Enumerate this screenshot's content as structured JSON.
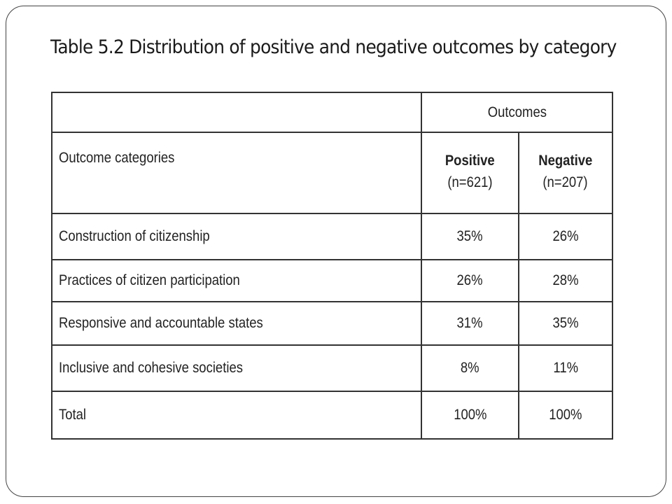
{
  "title": "Table 5.2 Distribution of positive and negative outcomes by category",
  "chart_data": {
    "type": "table",
    "title": "Table 5.2 Distribution of positive and negative outcomes by category",
    "group_header": "Outcomes",
    "row_header": "Outcome categories",
    "columns": [
      {
        "name": "Positive",
        "n_label": "(n=621)"
      },
      {
        "name": "Negative",
        "n_label": "(n=207)"
      }
    ],
    "rows": [
      {
        "category": "Construction of citizenship",
        "positive": "35%",
        "negative": "26%"
      },
      {
        "category": "Practices of citizen participation",
        "positive": "26%",
        "negative": "28%"
      },
      {
        "category": "Responsive and accountable states",
        "positive": "31%",
        "negative": "35%"
      },
      {
        "category": "Inclusive and cohesive societies",
        "positive": "8%",
        "negative": "11%"
      },
      {
        "category": "Total",
        "positive": "100%",
        "negative": "100%"
      }
    ]
  }
}
